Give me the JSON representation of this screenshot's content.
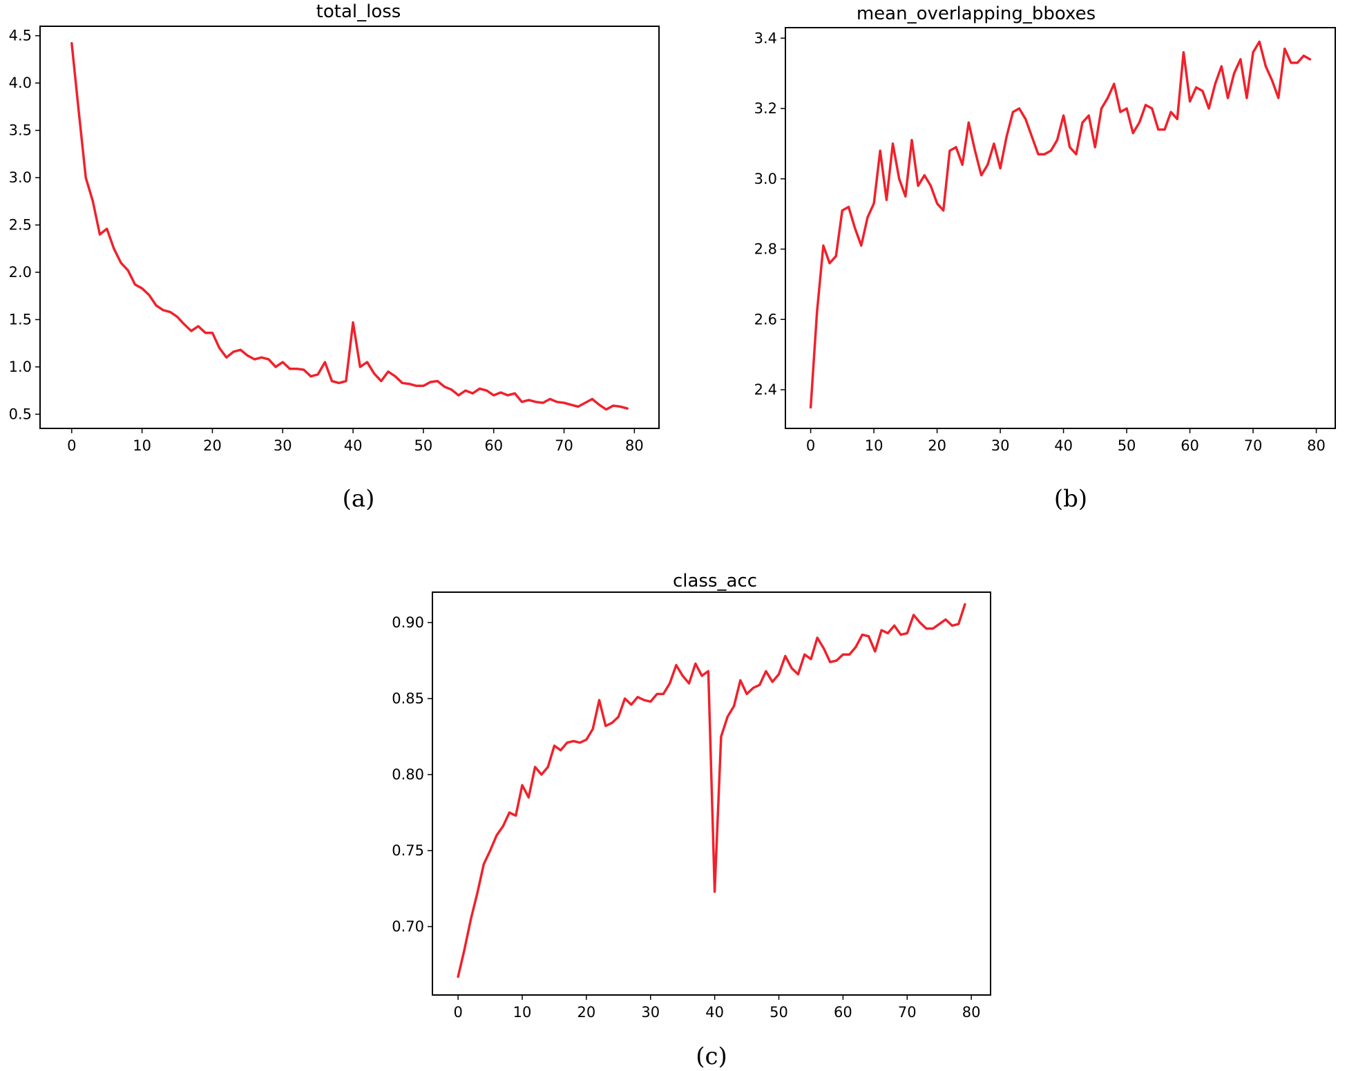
{
  "line_color": "#f0212b",
  "chart_data": [
    {
      "type": "line",
      "panel_label": "(a)",
      "title": "total_loss",
      "xlabel": "",
      "ylabel": "",
      "xlim": [
        -4.5,
        83.5
      ],
      "ylim": [
        0.35,
        4.6
      ],
      "xticks": [
        0,
        10,
        20,
        30,
        40,
        50,
        60,
        70,
        80
      ],
      "yticks": [
        0.5,
        1.0,
        1.5,
        2.0,
        2.5,
        3.0,
        3.5,
        4.0,
        4.5
      ],
      "ytick_labels": [
        "0.5",
        "1.0",
        "1.5",
        "2.0",
        "2.5",
        "3.0",
        "3.5",
        "4.0",
        "4.5"
      ],
      "grid": false,
      "series": [
        {
          "x": [
            0,
            1,
            2,
            3,
            4,
            5,
            6,
            7,
            8,
            9,
            10,
            11,
            12,
            13,
            14,
            15,
            16,
            17,
            18,
            19,
            20,
            21,
            22,
            23,
            24,
            25,
            26,
            27,
            28,
            29,
            30,
            31,
            32,
            33,
            34,
            35,
            36,
            37,
            38,
            39,
            40,
            41,
            42,
            43,
            44,
            45,
            46,
            47,
            48,
            49,
            50,
            51,
            52,
            53,
            54,
            55,
            56,
            57,
            58,
            59,
            60,
            61,
            62,
            63,
            64,
            65,
            66,
            67,
            68,
            69,
            70,
            71,
            72,
            73,
            74,
            75,
            76,
            77,
            78,
            79
          ],
          "y": [
            4.42,
            3.7,
            3.0,
            2.75,
            2.4,
            2.46,
            2.25,
            2.1,
            2.02,
            1.87,
            1.83,
            1.76,
            1.65,
            1.6,
            1.58,
            1.53,
            1.45,
            1.38,
            1.43,
            1.36,
            1.36,
            1.2,
            1.1,
            1.16,
            1.18,
            1.12,
            1.08,
            1.1,
            1.08,
            1.0,
            1.05,
            0.98,
            0.98,
            0.97,
            0.9,
            0.92,
            1.05,
            0.85,
            0.83,
            0.85,
            1.47,
            1.0,
            1.05,
            0.93,
            0.85,
            0.95,
            0.9,
            0.83,
            0.82,
            0.8,
            0.8,
            0.84,
            0.85,
            0.79,
            0.76,
            0.7,
            0.75,
            0.72,
            0.77,
            0.75,
            0.7,
            0.73,
            0.7,
            0.72,
            0.63,
            0.65,
            0.63,
            0.62,
            0.66,
            0.63,
            0.62,
            0.6,
            0.58,
            0.62,
            0.66,
            0.6,
            0.55,
            0.59,
            0.58,
            0.56
          ]
        }
      ]
    },
    {
      "type": "line",
      "panel_label": "(b)",
      "title": "mean_overlapping_bboxes",
      "xlabel": "",
      "ylabel": "",
      "xlim": [
        -4,
        83
      ],
      "ylim": [
        2.29,
        3.43
      ],
      "xticks": [
        0,
        10,
        20,
        30,
        40,
        50,
        60,
        70,
        80
      ],
      "yticks": [
        2.4,
        2.6,
        2.8,
        3.0,
        3.2,
        3.4
      ],
      "ytick_labels": [
        "2.4",
        "2.6",
        "2.8",
        "3.0",
        "3.2",
        "3.4"
      ],
      "grid": false,
      "series": [
        {
          "x": [
            0,
            1,
            2,
            3,
            4,
            5,
            6,
            7,
            8,
            9,
            10,
            11,
            12,
            13,
            14,
            15,
            16,
            17,
            18,
            19,
            20,
            21,
            22,
            23,
            24,
            25,
            26,
            27,
            28,
            29,
            30,
            31,
            32,
            33,
            34,
            35,
            36,
            37,
            38,
            39,
            40,
            41,
            42,
            43,
            44,
            45,
            46,
            47,
            48,
            49,
            50,
            51,
            52,
            53,
            54,
            55,
            56,
            57,
            58,
            59,
            60,
            61,
            62,
            63,
            64,
            65,
            66,
            67,
            68,
            69,
            70,
            71,
            72,
            73,
            74,
            75,
            76,
            77,
            78,
            79
          ],
          "y": [
            2.35,
            2.62,
            2.81,
            2.76,
            2.78,
            2.91,
            2.92,
            2.86,
            2.81,
            2.89,
            2.93,
            3.08,
            2.94,
            3.1,
            3.0,
            2.95,
            3.11,
            2.98,
            3.01,
            2.98,
            2.93,
            2.91,
            3.08,
            3.09,
            3.04,
            3.16,
            3.08,
            3.01,
            3.04,
            3.1,
            3.03,
            3.12,
            3.19,
            3.2,
            3.17,
            3.12,
            3.07,
            3.07,
            3.08,
            3.11,
            3.18,
            3.09,
            3.07,
            3.16,
            3.18,
            3.09,
            3.2,
            3.23,
            3.27,
            3.19,
            3.2,
            3.13,
            3.16,
            3.21,
            3.2,
            3.14,
            3.14,
            3.19,
            3.17,
            3.36,
            3.22,
            3.26,
            3.25,
            3.2,
            3.27,
            3.32,
            3.23,
            3.3,
            3.34,
            3.23,
            3.36,
            3.39,
            3.32,
            3.28,
            3.23,
            3.37,
            3.33,
            3.33,
            3.35,
            3.34
          ]
        }
      ]
    },
    {
      "type": "line",
      "panel_label": "(c)",
      "title": "class_acc",
      "xlabel": "",
      "ylabel": "",
      "xlim": [
        -4,
        83
      ],
      "ylim": [
        0.655,
        0.92
      ],
      "xticks": [
        0,
        10,
        20,
        30,
        40,
        50,
        60,
        70,
        80
      ],
      "yticks": [
        0.7,
        0.75,
        0.8,
        0.85,
        0.9
      ],
      "ytick_labels": [
        "0.70",
        "0.75",
        "0.80",
        "0.85",
        "0.90"
      ],
      "grid": false,
      "series": [
        {
          "x": [
            0,
            1,
            2,
            3,
            4,
            5,
            6,
            7,
            8,
            9,
            10,
            11,
            12,
            13,
            14,
            15,
            16,
            17,
            18,
            19,
            20,
            21,
            22,
            23,
            24,
            25,
            26,
            27,
            28,
            29,
            30,
            31,
            32,
            33,
            34,
            35,
            36,
            37,
            38,
            39,
            40,
            41,
            42,
            43,
            44,
            45,
            46,
            47,
            48,
            49,
            50,
            51,
            52,
            53,
            54,
            55,
            56,
            57,
            58,
            59,
            60,
            61,
            62,
            63,
            64,
            65,
            66,
            67,
            68,
            69,
            70,
            71,
            72,
            73,
            74,
            75,
            76,
            77,
            78,
            79
          ],
          "y": [
            0.667,
            0.685,
            0.705,
            0.722,
            0.741,
            0.75,
            0.76,
            0.766,
            0.775,
            0.773,
            0.793,
            0.785,
            0.805,
            0.8,
            0.805,
            0.819,
            0.816,
            0.821,
            0.822,
            0.821,
            0.823,
            0.83,
            0.849,
            0.832,
            0.834,
            0.838,
            0.85,
            0.846,
            0.851,
            0.849,
            0.848,
            0.853,
            0.853,
            0.86,
            0.872,
            0.865,
            0.86,
            0.873,
            0.865,
            0.868,
            0.723,
            0.825,
            0.838,
            0.845,
            0.862,
            0.853,
            0.857,
            0.859,
            0.868,
            0.861,
            0.866,
            0.878,
            0.87,
            0.866,
            0.879,
            0.876,
            0.89,
            0.883,
            0.874,
            0.875,
            0.879,
            0.879,
            0.884,
            0.892,
            0.891,
            0.881,
            0.895,
            0.893,
            0.898,
            0.892,
            0.893,
            0.905,
            0.9,
            0.896,
            0.896,
            0.899,
            0.902,
            0.898,
            0.899,
            0.912
          ]
        }
      ]
    }
  ]
}
